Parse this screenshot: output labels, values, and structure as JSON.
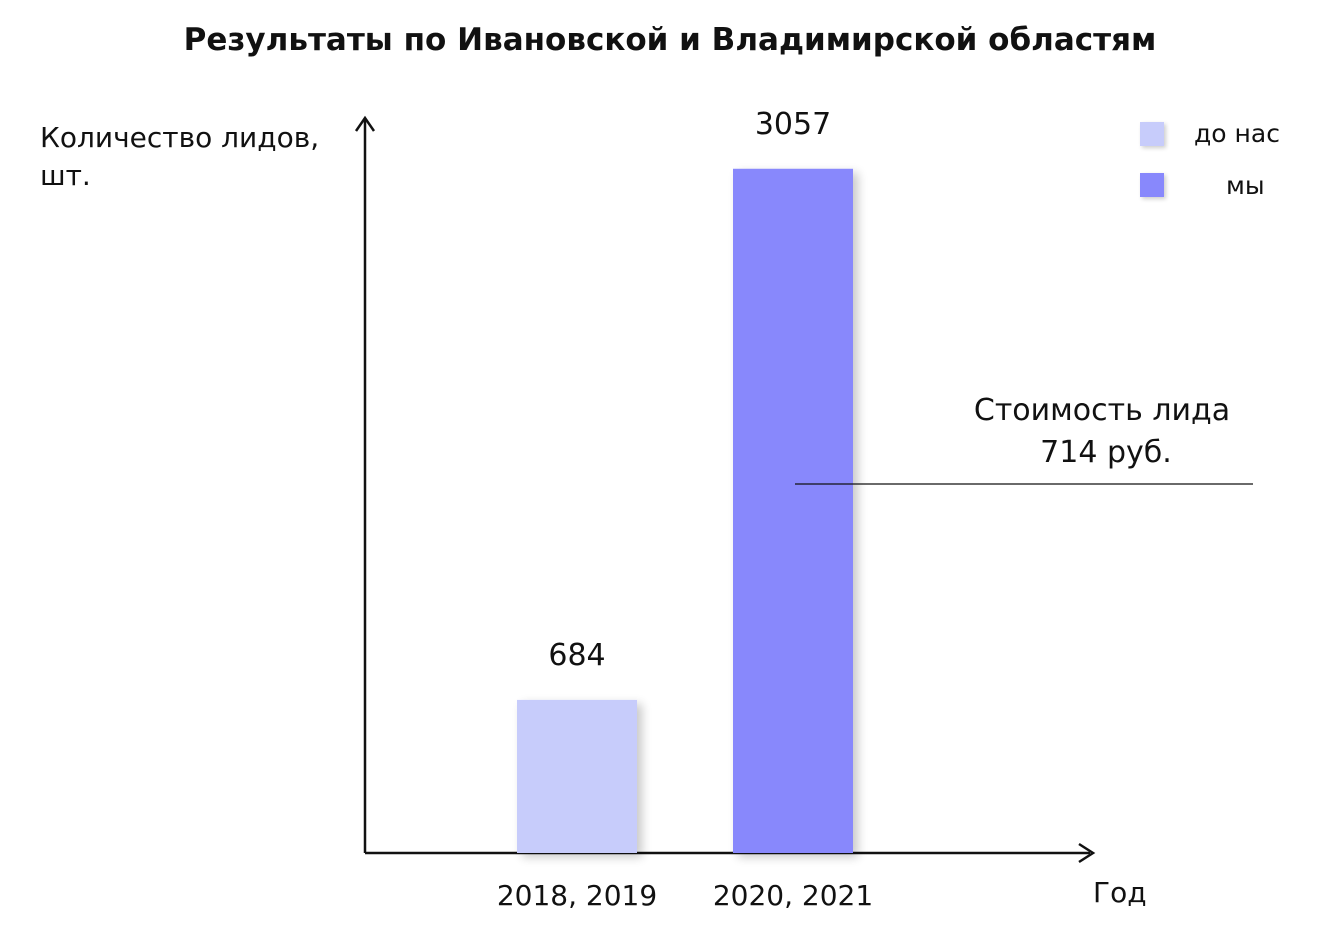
{
  "chart_data": {
    "type": "bar",
    "title": "Результаты по Ивановской и Владимирской областям",
    "ylabel_line1": "Количество лидов,",
    "ylabel_line2": "шт.",
    "xlabel": "Год",
    "categories": [
      "2018, 2019",
      "2020, 2021"
    ],
    "values": [
      684,
      3057
    ],
    "value_labels": [
      "684",
      "3057"
    ],
    "bar_series": [
      "до нас",
      "мы"
    ],
    "ylim": [
      0,
      3400
    ],
    "grid": false,
    "legend_position": "top-right",
    "legend": [
      {
        "name": "до нас",
        "color": "#c7ccfb"
      },
      {
        "name": "мы",
        "color": "#8888fc"
      }
    ],
    "annotation_line1": "Стоимость лида",
    "annotation_line2": "714 руб.",
    "colors": {
      "before": "#c7ccfb",
      "us": "#8888fc",
      "axis": "#111111"
    }
  }
}
